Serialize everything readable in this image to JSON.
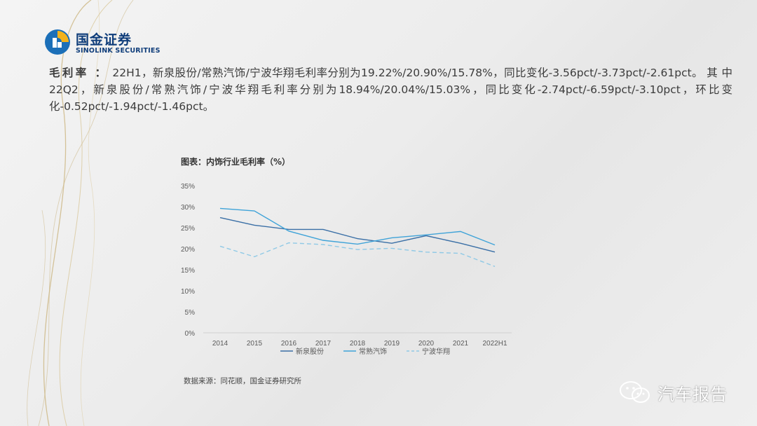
{
  "brand": {
    "name_cn": "国金证券",
    "name_en": "SINOLINK SECURITIES"
  },
  "summary": {
    "lead": "毛利率 ：",
    "text": "22H1，新泉股份/常熟汽饰/宁波华翔毛利率分别为19.22%/20.90%/15.78%，同比变化-3.56pct/-3.73pct/-2.61pct。 其 中 22Q2，新泉股份/常熟汽饰/宁波华翔毛利率分别为18.94%/20.04%/15.03%，同比变化-2.74pct/-6.59pct/-3.10pct，环比变化-0.52pct/-1.94pct/-1.46pct。"
  },
  "figure": {
    "title": "图表：内饰行业毛利率（%）",
    "source": "数据来源：同花顺，国金证券研究所"
  },
  "watermark": {
    "text": "汽车报告"
  },
  "colors": {
    "xinquan": "#3a6fa6",
    "changshu": "#3fa3d8",
    "ningbo": "#8fc9e6",
    "axis_text": "#595959",
    "brand": "#0f3d7a"
  },
  "chart_data": {
    "type": "line",
    "title": "图表：内饰行业毛利率（%）",
    "xlabel": "",
    "ylabel": "",
    "categories": [
      "2014",
      "2015",
      "2016",
      "2017",
      "2018",
      "2019",
      "2020",
      "2021",
      "2022H1"
    ],
    "ylim": [
      0,
      35
    ],
    "yticks": [
      "0%",
      "5%",
      "10%",
      "15%",
      "20%",
      "25%",
      "30%",
      "35%"
    ],
    "grid": false,
    "legend_position": "bottom",
    "series": [
      {
        "name": "新泉股份",
        "style": "solid",
        "color": "#3a6fa6",
        "values": [
          27.4,
          25.6,
          24.6,
          24.6,
          22.4,
          21.3,
          23.1,
          21.3,
          19.22
        ]
      },
      {
        "name": "常熟汽饰",
        "style": "solid",
        "color": "#3fa3d8",
        "values": [
          29.6,
          29.0,
          24.2,
          22.0,
          21.1,
          22.6,
          23.3,
          24.1,
          20.9
        ]
      },
      {
        "name": "宁波华翔",
        "style": "dashed",
        "color": "#8fc9e6",
        "values": [
          20.6,
          18.1,
          21.4,
          21.0,
          19.8,
          20.1,
          19.2,
          18.9,
          15.78
        ]
      }
    ]
  }
}
